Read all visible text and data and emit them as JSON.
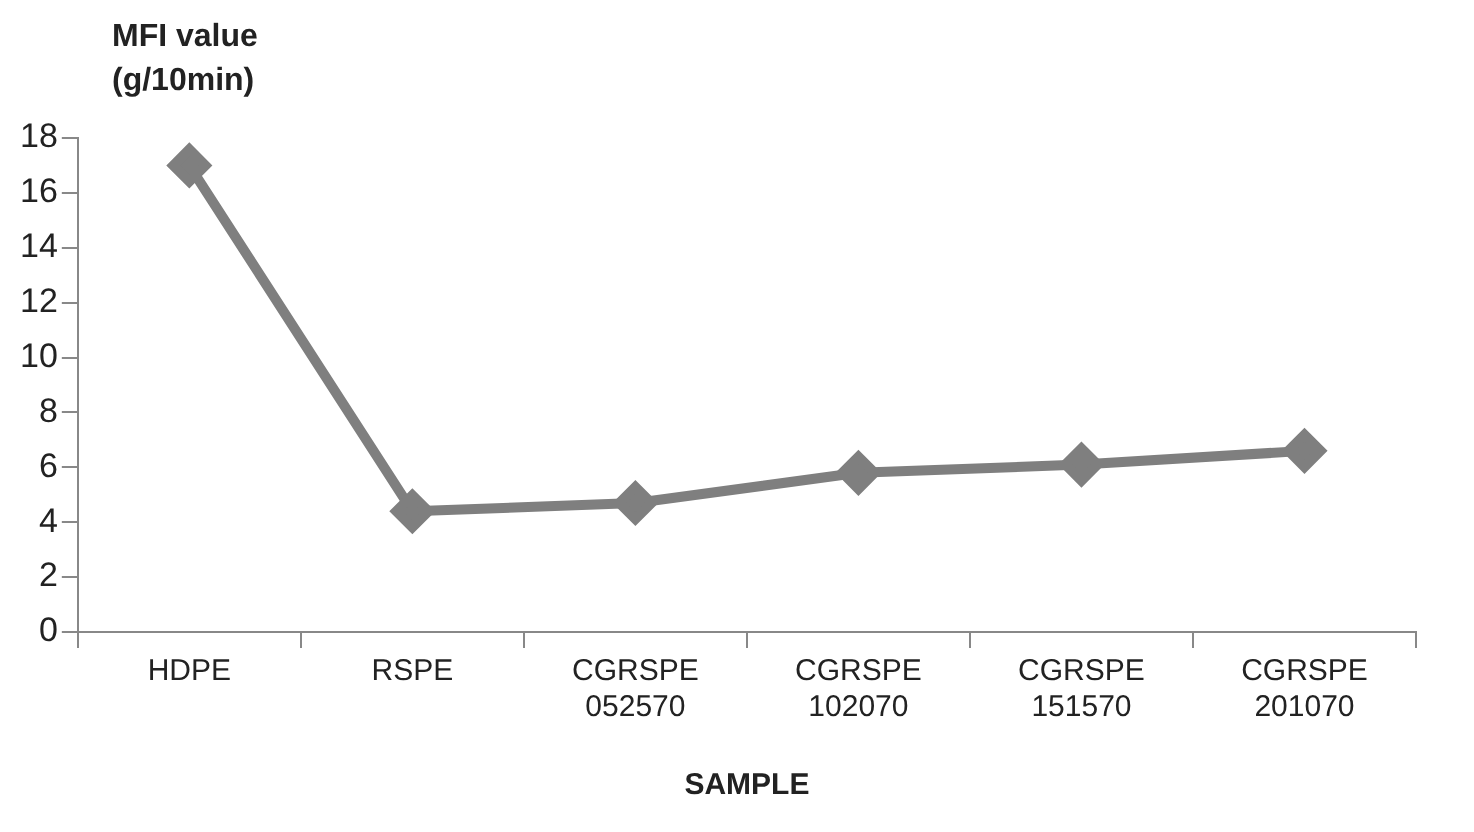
{
  "chart_data": {
    "type": "line",
    "ylabel": "MFI value (g/10min)",
    "xlabel": "SAMPLE",
    "categories": [
      "HDPE",
      "RSPE",
      "CGRSPE 052570",
      "CGRSPE 102070",
      "CGRSPE 151570",
      "CGRSPE 201070"
    ],
    "series": [
      {
        "color": "#7f7f7f",
        "values": [
          17.0,
          4.4,
          4.7,
          5.8,
          6.1,
          6.6
        ]
      }
    ],
    "ylim": [
      0,
      18
    ],
    "yticks": [
      0,
      2,
      4,
      6,
      8,
      10,
      12,
      14,
      16,
      18
    ],
    "grid": false,
    "legend": false,
    "marker": "diamond",
    "line_style": "solid"
  }
}
